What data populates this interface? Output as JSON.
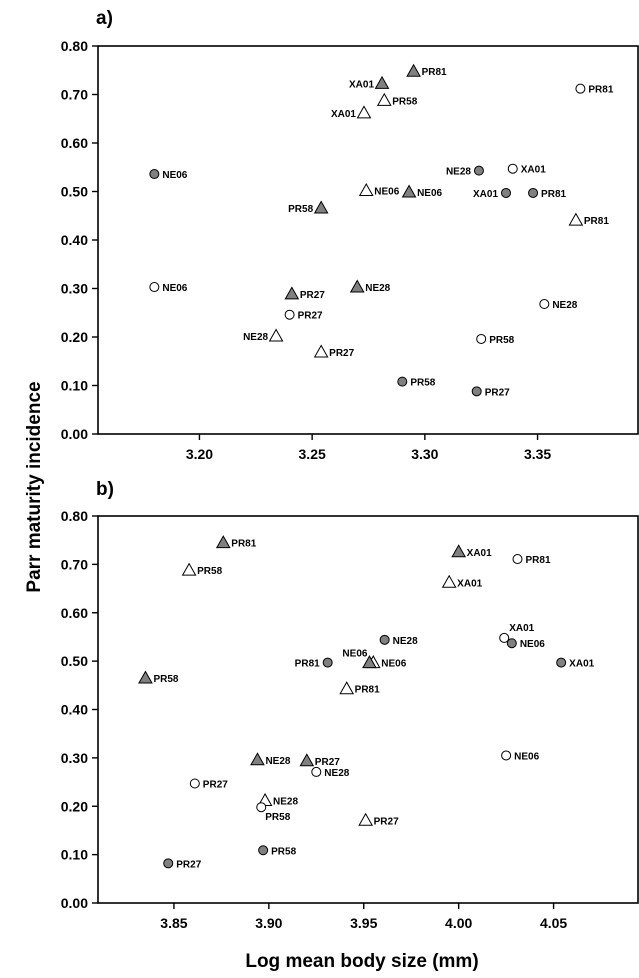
{
  "figure": {
    "ylabel": "Parr maturity incidence",
    "xlabel": "Log mean body size (mm)"
  },
  "legend": {
    "marker_colors": {
      "filled": "#808080",
      "open": "#ffffff",
      "edge": "#000000"
    }
  },
  "chart_data": [
    {
      "type": "scatter",
      "panel_label": "a)",
      "ylim": [
        0.0,
        0.8
      ],
      "xlim": [
        3.155,
        3.395
      ],
      "xticks": [
        "3.20",
        "3.25",
        "3.30",
        "3.35"
      ],
      "yticks": [
        "0.00",
        "0.10",
        "0.20",
        "0.30",
        "0.40",
        "0.50",
        "0.60",
        "0.70",
        "0.80"
      ],
      "grid": false,
      "points": [
        {
          "marker": "triangle-filled",
          "x": 3.281,
          "y": 0.723,
          "label": "XA01",
          "label_side": "left"
        },
        {
          "marker": "triangle-filled",
          "x": 3.295,
          "y": 0.748,
          "label": "PR81",
          "label_side": "right"
        },
        {
          "marker": "triangle-open",
          "x": 3.282,
          "y": 0.688,
          "label": "PR58",
          "label_side": "right"
        },
        {
          "marker": "triangle-open",
          "x": 3.273,
          "y": 0.662,
          "label": "XA01",
          "label_side": "left"
        },
        {
          "marker": "circle-open",
          "x": 3.369,
          "y": 0.712,
          "label": "PR81",
          "label_side": "right"
        },
        {
          "marker": "circle-filled",
          "x": 3.18,
          "y": 0.536,
          "label": "NE06",
          "label_side": "right"
        },
        {
          "marker": "circle-filled",
          "x": 3.324,
          "y": 0.543,
          "label": "NE28",
          "label_side": "left"
        },
        {
          "marker": "circle-open",
          "x": 3.339,
          "y": 0.547,
          "label": "XA01",
          "label_side": "right"
        },
        {
          "marker": "triangle-open",
          "x": 3.274,
          "y": 0.502,
          "label": "NE06",
          "label_side": "right"
        },
        {
          "marker": "triangle-filled",
          "x": 3.293,
          "y": 0.499,
          "label": "NE06",
          "label_side": "right"
        },
        {
          "marker": "circle-filled",
          "x": 3.336,
          "y": 0.497,
          "label": "XA01",
          "label_side": "left"
        },
        {
          "marker": "circle-filled",
          "x": 3.348,
          "y": 0.497,
          "label": "PR81",
          "label_side": "right"
        },
        {
          "marker": "triangle-filled",
          "x": 3.254,
          "y": 0.466,
          "label": "PR58",
          "label_side": "left"
        },
        {
          "marker": "triangle-open",
          "x": 3.367,
          "y": 0.441,
          "label": "PR81",
          "label_side": "right"
        },
        {
          "marker": "circle-open",
          "x": 3.18,
          "y": 0.303,
          "label": "NE06",
          "label_side": "right"
        },
        {
          "marker": "triangle-filled",
          "x": 3.241,
          "y": 0.289,
          "label": "PR27",
          "label_side": "right"
        },
        {
          "marker": "triangle-filled",
          "x": 3.27,
          "y": 0.303,
          "label": "NE28",
          "label_side": "right"
        },
        {
          "marker": "circle-open",
          "x": 3.353,
          "y": 0.268,
          "label": "NE28",
          "label_side": "right"
        },
        {
          "marker": "circle-open",
          "x": 3.24,
          "y": 0.246,
          "label": "PR27",
          "label_side": "right"
        },
        {
          "marker": "triangle-open",
          "x": 3.234,
          "y": 0.202,
          "label": "NE28",
          "label_side": "left"
        },
        {
          "marker": "circle-open",
          "x": 3.325,
          "y": 0.196,
          "label": "PR58",
          "label_side": "right"
        },
        {
          "marker": "triangle-open",
          "x": 3.254,
          "y": 0.169,
          "label": "PR27",
          "label_side": "right"
        },
        {
          "marker": "circle-filled",
          "x": 3.29,
          "y": 0.108,
          "label": "PR58",
          "label_side": "right"
        },
        {
          "marker": "circle-filled",
          "x": 3.323,
          "y": 0.088,
          "label": "PR27",
          "label_side": "right"
        }
      ]
    },
    {
      "type": "scatter",
      "panel_label": "b)",
      "ylim": [
        0.0,
        0.8
      ],
      "xlim": [
        3.81,
        4.095
      ],
      "xticks": [
        "3.85",
        "3.90",
        "3.95",
        "4.00",
        "4.05"
      ],
      "yticks": [
        "0.00",
        "0.10",
        "0.20",
        "0.30",
        "0.40",
        "0.50",
        "0.60",
        "0.70",
        "0.80"
      ],
      "grid": false,
      "points": [
        {
          "marker": "triangle-filled",
          "x": 3.876,
          "y": 0.745,
          "label": "PR81",
          "label_side": "right"
        },
        {
          "marker": "triangle-open",
          "x": 3.858,
          "y": 0.688,
          "label": "PR58",
          "label_side": "right"
        },
        {
          "marker": "triangle-filled",
          "x": 4.0,
          "y": 0.726,
          "label": "XA01",
          "label_side": "right"
        },
        {
          "marker": "circle-open",
          "x": 4.031,
          "y": 0.711,
          "label": "PR81",
          "label_side": "right"
        },
        {
          "marker": "triangle-open",
          "x": 3.995,
          "y": 0.663,
          "label": "XA01",
          "label_side": "right"
        },
        {
          "marker": "circle-filled",
          "x": 3.961,
          "y": 0.544,
          "label": "NE28",
          "label_side": "right"
        },
        {
          "marker": "circle-open",
          "x": 4.024,
          "y": 0.548,
          "label": "XA01",
          "label_side": "right-up"
        },
        {
          "marker": "circle-filled",
          "x": 4.028,
          "y": 0.537,
          "label": "NE06",
          "label_side": "right"
        },
        {
          "marker": "triangle-open",
          "x": 3.955,
          "y": 0.497,
          "label": "NE06",
          "label_side": "right"
        },
        {
          "marker": "triangle-filled",
          "x": 3.953,
          "y": 0.497,
          "label": "NE06",
          "label_side": "left-up"
        },
        {
          "marker": "circle-filled",
          "x": 3.931,
          "y": 0.497,
          "label": "PR81",
          "label_side": "left"
        },
        {
          "marker": "circle-filled",
          "x": 4.054,
          "y": 0.497,
          "label": "XA01",
          "label_side": "right"
        },
        {
          "marker": "triangle-filled",
          "x": 3.835,
          "y": 0.465,
          "label": "PR58",
          "label_side": "right"
        },
        {
          "marker": "triangle-open",
          "x": 3.941,
          "y": 0.443,
          "label": "PR81",
          "label_side": "right"
        },
        {
          "marker": "circle-open",
          "x": 4.025,
          "y": 0.305,
          "label": "NE06",
          "label_side": "right"
        },
        {
          "marker": "triangle-filled",
          "x": 3.894,
          "y": 0.296,
          "label": "NE28",
          "label_side": "right"
        },
        {
          "marker": "triangle-filled",
          "x": 3.92,
          "y": 0.294,
          "label": "PR27",
          "label_side": "right"
        },
        {
          "marker": "circle-open",
          "x": 3.925,
          "y": 0.271,
          "label": "NE28",
          "label_side": "right"
        },
        {
          "marker": "circle-open",
          "x": 3.861,
          "y": 0.247,
          "label": "PR27",
          "label_side": "right"
        },
        {
          "marker": "triangle-open",
          "x": 3.898,
          "y": 0.212,
          "label": "NE28",
          "label_side": "right"
        },
        {
          "marker": "circle-open",
          "x": 3.896,
          "y": 0.198,
          "label": "PR58",
          "label_side": "right-down"
        },
        {
          "marker": "triangle-open",
          "x": 3.951,
          "y": 0.171,
          "label": "PR27",
          "label_side": "right"
        },
        {
          "marker": "circle-filled",
          "x": 3.897,
          "y": 0.109,
          "label": "PR58",
          "label_side": "right"
        },
        {
          "marker": "circle-filled",
          "x": 3.847,
          "y": 0.082,
          "label": "PR27",
          "label_side": "right"
        }
      ]
    }
  ]
}
